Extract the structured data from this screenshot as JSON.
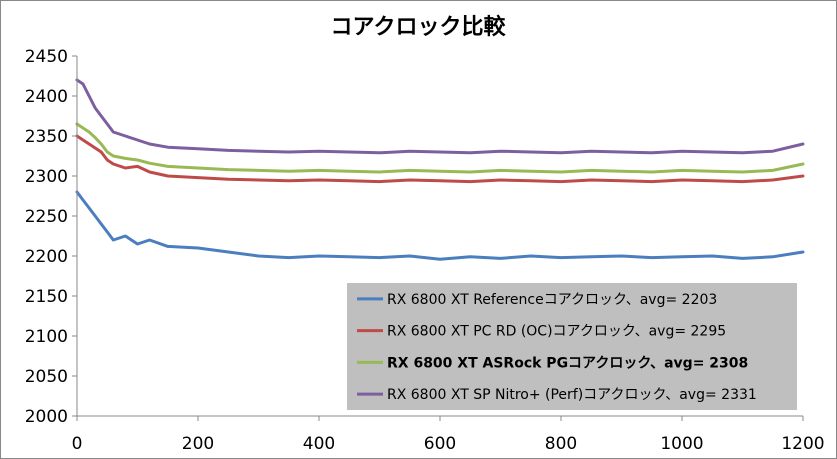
{
  "chart_data": {
    "type": "line",
    "title": "コアクロック比較",
    "xlabel": "",
    "ylabel": "",
    "xlim": [
      0,
      1200
    ],
    "ylim": [
      2000,
      2450
    ],
    "xticks": [
      0,
      200,
      400,
      600,
      800,
      1000,
      1200
    ],
    "yticks": [
      2000,
      2050,
      2100,
      2150,
      2200,
      2250,
      2300,
      2350,
      2400,
      2450
    ],
    "grid": false,
    "legend_position": "bottom-right",
    "legend_background": "#bfbfbf",
    "series": [
      {
        "name": "RX 6800 XT Referenceコアクロック、avg= 2203",
        "color": "#4a7ebf",
        "bold_label": false,
        "avg": 2203,
        "x": [
          0,
          10,
          20,
          30,
          40,
          50,
          60,
          80,
          100,
          120,
          150,
          200,
          250,
          300,
          350,
          400,
          450,
          500,
          550,
          600,
          650,
          700,
          750,
          800,
          850,
          900,
          950,
          1000,
          1050,
          1100,
          1150,
          1200
        ],
        "values": [
          2280,
          2270,
          2260,
          2250,
          2240,
          2230,
          2220,
          2225,
          2215,
          2220,
          2212,
          2210,
          2205,
          2200,
          2198,
          2200,
          2199,
          2198,
          2200,
          2196,
          2199,
          2197,
          2200,
          2198,
          2199,
          2200,
          2198,
          2199,
          2200,
          2197,
          2199,
          2205
        ]
      },
      {
        "name": "RX 6800 XT PC RD (OC)コアクロック、avg= 2295",
        "color": "#be4b48",
        "bold_label": false,
        "avg": 2295,
        "x": [
          0,
          10,
          20,
          30,
          40,
          50,
          60,
          80,
          100,
          120,
          150,
          200,
          250,
          300,
          350,
          400,
          450,
          500,
          550,
          600,
          650,
          700,
          750,
          800,
          850,
          900,
          950,
          1000,
          1050,
          1100,
          1150,
          1200
        ],
        "values": [
          2350,
          2345,
          2340,
          2335,
          2330,
          2320,
          2315,
          2310,
          2312,
          2305,
          2300,
          2298,
          2296,
          2295,
          2294,
          2295,
          2294,
          2293,
          2295,
          2294,
          2293,
          2295,
          2294,
          2293,
          2295,
          2294,
          2293,
          2295,
          2294,
          2293,
          2295,
          2300
        ]
      },
      {
        "name": "RX 6800 XT ASRock PGコアクロック、avg= 2308",
        "color": "#98b954",
        "bold_label": true,
        "avg": 2308,
        "x": [
          0,
          10,
          20,
          30,
          40,
          50,
          60,
          80,
          100,
          120,
          150,
          200,
          250,
          300,
          350,
          400,
          450,
          500,
          550,
          600,
          650,
          700,
          750,
          800,
          850,
          900,
          950,
          1000,
          1050,
          1100,
          1150,
          1200
        ],
        "values": [
          2365,
          2360,
          2355,
          2348,
          2340,
          2330,
          2325,
          2322,
          2320,
          2316,
          2312,
          2310,
          2308,
          2307,
          2306,
          2307,
          2306,
          2305,
          2307,
          2306,
          2305,
          2307,
          2306,
          2305,
          2307,
          2306,
          2305,
          2307,
          2306,
          2305,
          2307,
          2315
        ]
      },
      {
        "name": "RX 6800 XT SP Nitro+ (Perf)コアクロック、avg= 2331",
        "color": "#7d5fa0",
        "bold_label": false,
        "avg": 2331,
        "x": [
          0,
          10,
          20,
          30,
          40,
          50,
          60,
          80,
          100,
          120,
          150,
          200,
          250,
          300,
          350,
          400,
          450,
          500,
          550,
          600,
          650,
          700,
          750,
          800,
          850,
          900,
          950,
          1000,
          1050,
          1100,
          1150,
          1200
        ],
        "values": [
          2420,
          2415,
          2400,
          2385,
          2375,
          2365,
          2355,
          2350,
          2345,
          2340,
          2336,
          2334,
          2332,
          2331,
          2330,
          2331,
          2330,
          2329,
          2331,
          2330,
          2329,
          2331,
          2330,
          2329,
          2331,
          2330,
          2329,
          2331,
          2330,
          2329,
          2331,
          2340
        ]
      }
    ]
  }
}
